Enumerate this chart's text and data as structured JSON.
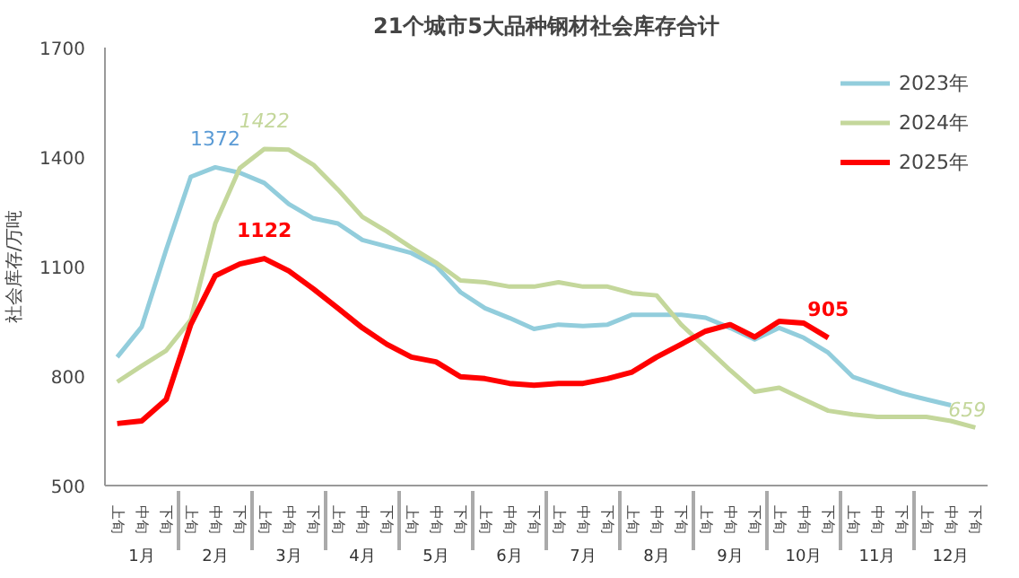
{
  "chart_data": {
    "type": "line",
    "title": "21个城市5大品种钢材社会库存合计",
    "ylabel": "社会库存/万吨",
    "categories": [
      "上旬",
      "中旬",
      "下旬",
      "上旬",
      "中旬",
      "下旬",
      "上旬",
      "中旬",
      "下旬",
      "上旬",
      "中旬",
      "下旬",
      "上旬",
      "中旬",
      "下旬",
      "上旬",
      "中旬",
      "下旬",
      "上旬",
      "中旬",
      "下旬",
      "上旬",
      "中旬",
      "下旬",
      "上旬",
      "中旬",
      "下旬",
      "上旬",
      "中旬",
      "下旬",
      "上旬",
      "中旬",
      "下旬",
      "上旬",
      "中旬",
      "下旬"
    ],
    "annotations": [
      "1月",
      "2月",
      "3月",
      "4月",
      "5月",
      "6月",
      "7月",
      "8月",
      "9月",
      "10月",
      "11月",
      "12月"
    ],
    "ylim": [
      500,
      1700
    ],
    "yticks": [
      500,
      800,
      1100,
      1400,
      1700
    ],
    "grid": false,
    "legend": "top right",
    "marker": "none",
    "line_style": "solid",
    "series": [
      {
        "name": "2023年",
        "color": "#92cddc",
        "values": [
          852,
          935,
          1147,
          1346,
          1372,
          1357,
          1329,
          1271,
          1232,
          1218,
          1173,
          1155,
          1137,
          1102,
          1030,
          986,
          959,
          929,
          941,
          937,
          941,
          968,
          968,
          968,
          960,
          932,
          900,
          932,
          905,
          864,
          798,
          775,
          753,
          736,
          720,
          null
        ],
        "value_labels": [
          null,
          null,
          null,
          null,
          "1372",
          null,
          null,
          null,
          null,
          null,
          null,
          null,
          null,
          null,
          null,
          null,
          null,
          null,
          null,
          null,
          null,
          null,
          null,
          null,
          null,
          null,
          null,
          null,
          null,
          null,
          null,
          null,
          null,
          null,
          null,
          null
        ]
      },
      {
        "name": "2024年",
        "color": "#c4d79b",
        "values": [
          784,
          828,
          870,
          954,
          1218,
          1370,
          1422,
          1420,
          1379,
          1311,
          1236,
          1196,
          1152,
          1111,
          1062,
          1057,
          1045,
          1045,
          1057,
          1045,
          1045,
          1027,
          1021,
          941,
          879,
          816,
          757,
          768,
          736,
          705,
          695,
          688,
          688,
          688,
          677,
          659
        ],
        "value_labels": [
          null,
          null,
          null,
          null,
          null,
          null,
          "1422",
          null,
          null,
          null,
          null,
          null,
          null,
          null,
          null,
          null,
          null,
          null,
          null,
          null,
          null,
          null,
          null,
          null,
          null,
          null,
          null,
          null,
          null,
          null,
          null,
          null,
          null,
          null,
          null,
          "659"
        ]
      },
      {
        "name": "2025年",
        "color": "#ff0000",
        "values": [
          670,
          677,
          736,
          941,
          1075,
          1107,
          1122,
          1088,
          1039,
          986,
          932,
          887,
          852,
          839,
          798,
          793,
          780,
          775,
          780,
          780,
          793,
          811,
          852,
          887,
          923,
          941,
          907,
          950,
          945,
          905,
          null,
          null,
          null,
          null,
          null,
          null
        ],
        "value_labels": [
          null,
          null,
          null,
          null,
          null,
          null,
          "1122",
          null,
          null,
          null,
          null,
          null,
          null,
          null,
          null,
          null,
          null,
          null,
          null,
          null,
          null,
          null,
          null,
          null,
          null,
          null,
          null,
          null,
          null,
          "905",
          null,
          null,
          null,
          null,
          null,
          null
        ]
      }
    ]
  }
}
